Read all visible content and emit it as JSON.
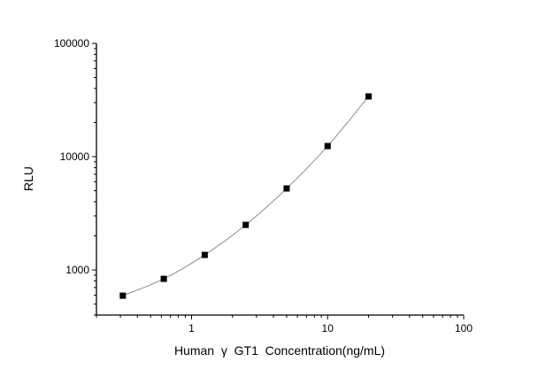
{
  "chart_data": {
    "type": "line",
    "title": "",
    "xlabel": "Human  γ  GT1  Concentration(ng/mL)",
    "ylabel": "RLU",
    "x_scale": "log",
    "y_scale": "log",
    "xlim": [
      0.2,
      100
    ],
    "ylim": [
      400,
      100000
    ],
    "x_ticks": [
      {
        "value": 1,
        "label": "1"
      },
      {
        "value": 10,
        "label": "10"
      },
      {
        "value": 100,
        "label": "100"
      }
    ],
    "y_ticks": [
      {
        "value": 1000,
        "label": "1000"
      },
      {
        "value": 10000,
        "label": "10000"
      },
      {
        "value": 100000,
        "label": "100000"
      }
    ],
    "grid": false,
    "marker": "square",
    "marker_color": "#000000",
    "line_color": "#8c8c8c",
    "series": [
      {
        "x": [
          0.3125,
          0.625,
          1.25,
          2.5,
          5,
          10,
          20
        ],
        "y": [
          593,
          835,
          1358,
          2500,
          5240,
          12400,
          34000
        ]
      }
    ]
  }
}
